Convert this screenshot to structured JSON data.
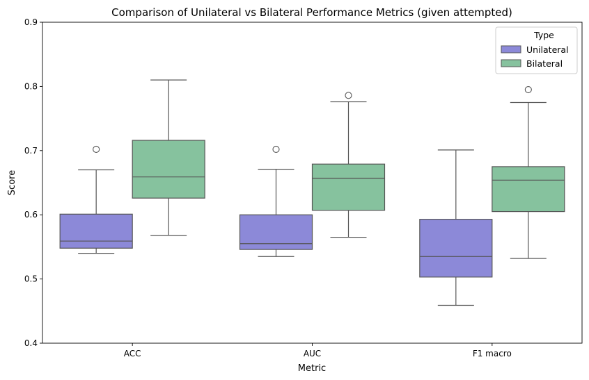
{
  "chart_data": {
    "type": "box",
    "title": "Comparison of Unilateral vs Bilateral Performance Metrics (given attempted)",
    "xlabel": "Metric",
    "ylabel": "Score",
    "ylim": [
      0.4,
      0.9
    ],
    "yticks": [
      "0.4",
      "0.5",
      "0.6",
      "0.7",
      "0.8",
      "0.9"
    ],
    "grid": false,
    "categories": [
      "ACC",
      "AUC",
      "F1 macro"
    ],
    "legend": {
      "title": "Type",
      "position": "top-right"
    },
    "series": [
      {
        "name": "Unilateral",
        "color": "#8c89d8",
        "boxes": [
          {
            "whisker_low": 0.54,
            "q1": 0.548,
            "median": 0.559,
            "q3": 0.601,
            "whisker_high": 0.67,
            "outliers": [
              0.702
            ]
          },
          {
            "whisker_low": 0.535,
            "q1": 0.546,
            "median": 0.555,
            "q3": 0.6,
            "whisker_high": 0.671,
            "outliers": [
              0.702
            ]
          },
          {
            "whisker_low": 0.459,
            "q1": 0.503,
            "median": 0.535,
            "q3": 0.593,
            "whisker_high": 0.701,
            "outliers": []
          }
        ]
      },
      {
        "name": "Bilateral",
        "color": "#86c29e",
        "boxes": [
          {
            "whisker_low": 0.568,
            "q1": 0.626,
            "median": 0.659,
            "q3": 0.716,
            "whisker_high": 0.81,
            "outliers": []
          },
          {
            "whisker_low": 0.565,
            "q1": 0.607,
            "median": 0.657,
            "q3": 0.679,
            "whisker_high": 0.776,
            "outliers": [
              0.786
            ]
          },
          {
            "whisker_low": 0.532,
            "q1": 0.605,
            "median": 0.654,
            "q3": 0.675,
            "whisker_high": 0.775,
            "outliers": [
              0.795
            ]
          }
        ]
      }
    ]
  }
}
